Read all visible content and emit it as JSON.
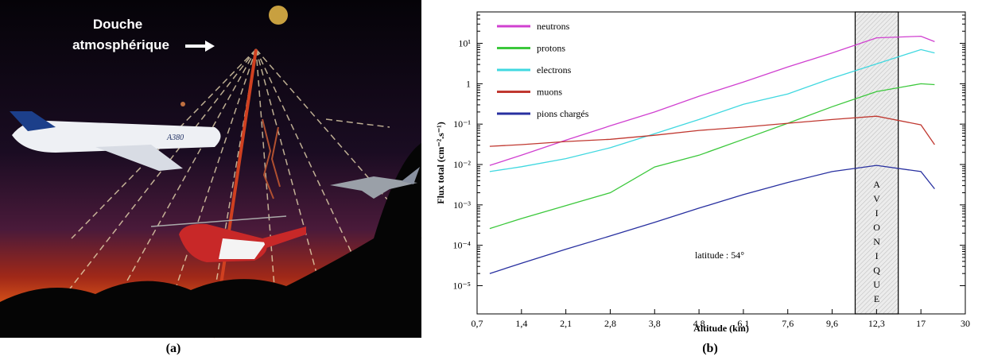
{
  "panel_a": {
    "caption": "(a)",
    "shower_label": [
      "Douche",
      "atmosphérique"
    ],
    "plane_label": "A380"
  },
  "panel_b": {
    "caption": "(b)"
  },
  "chart_data": {
    "type": "line",
    "x_label": "Altitude (km)",
    "y_label": "Flux total (cm⁻².s⁻¹)",
    "y_scale": "log",
    "x": [
      0.9,
      1.4,
      2.1,
      2.8,
      3.8,
      4.8,
      6.1,
      7.6,
      9.6,
      12.3,
      17,
      21
    ],
    "series": [
      {
        "name": "neutrons",
        "color": "#d040d0",
        "values": [
          0.0095,
          0.017,
          0.04,
          0.091,
          0.2,
          0.49,
          1.1,
          2.6,
          5.8,
          13.7,
          15,
          11
        ]
      },
      {
        "name": "protons",
        "color": "#3cc83c",
        "values": [
          0.00026,
          0.00046,
          0.00096,
          0.002,
          0.0087,
          0.017,
          0.042,
          0.105,
          0.27,
          0.64,
          1,
          0.95
        ]
      },
      {
        "name": "electrons",
        "color": "#40d8e0",
        "values": [
          0.0067,
          0.0088,
          0.014,
          0.026,
          0.058,
          0.13,
          0.31,
          0.56,
          1.37,
          3.1,
          7,
          5.8
        ]
      },
      {
        "name": "muons",
        "color": "#c03830",
        "values": [
          0.0283,
          0.031,
          0.037,
          0.042,
          0.053,
          0.07,
          0.084,
          0.105,
          0.13,
          0.157,
          0.096,
          0.031
        ]
      },
      {
        "name": "pions chargés",
        "color": "#2830a0",
        "values": [
          2e-05,
          3.6e-05,
          8e-05,
          0.00017,
          0.00037,
          0.00083,
          0.0018,
          0.0036,
          0.0067,
          0.0095,
          0.0067,
          0.0025
        ]
      }
    ],
    "xlim": [
      0.7,
      30
    ],
    "xticks": [
      {
        "value": 0.7,
        "label": "0,7"
      },
      {
        "value": 1.4,
        "label": "1,4"
      },
      {
        "value": 2.1,
        "label": "2,1"
      },
      {
        "value": 2.8,
        "label": "2,8"
      },
      {
        "value": 3.8,
        "label": "3,8"
      },
      {
        "value": 4.8,
        "label": "4,8"
      },
      {
        "value": 6.1,
        "label": "6,1"
      },
      {
        "value": 7.6,
        "label": "7,6"
      },
      {
        "value": 9.6,
        "label": "9,6"
      },
      {
        "value": 12.3,
        "label": "12,3"
      },
      17,
      30
    ],
    "ylim": [
      2e-06,
      60
    ],
    "yticks": [
      {
        "value": 10,
        "label": "10¹"
      },
      1,
      {
        "value": 0.1,
        "label": "10⁻¹"
      },
      {
        "value": 0.01,
        "label": "10⁻²"
      },
      {
        "value": 0.001,
        "label": "10⁻³"
      },
      {
        "value": 0.0001,
        "label": "10⁻⁴"
      },
      {
        "value": 1e-05,
        "label": "10⁻⁵"
      }
    ],
    "band": {
      "label": "AVIONIQUE",
      "x": [
        11,
        14.6
      ]
    },
    "annotation": "latitude : 54°",
    "legend": "upper left"
  }
}
